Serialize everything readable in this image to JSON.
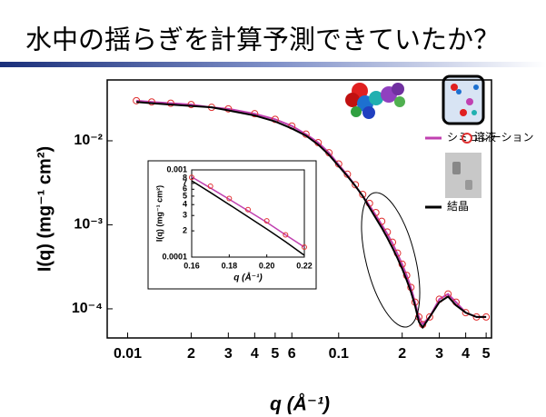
{
  "slide_title": "水中の揺らぎを計算予測できていたか？",
  "chart_data": [
    {
      "type": "line",
      "xscale": "log",
      "yscale": "log",
      "xlabel": "q (Å⁻¹)",
      "ylabel": "I(q) (mg⁻¹ cm²)",
      "xlim": [
        0.008,
        0.53
      ],
      "ylim": [
        4.5e-05,
        0.053
      ],
      "xticks": [
        0.01,
        {
          "value": 0.02,
          "label": "2"
        },
        {
          "value": 0.03,
          "label": "3"
        },
        {
          "value": 0.04,
          "label": "4"
        },
        {
          "value": 0.05,
          "label": "5"
        },
        {
          "value": 0.06,
          "label": "6"
        },
        0.1,
        {
          "value": 0.2,
          "label": "2"
        },
        {
          "value": 0.3,
          "label": "3"
        },
        {
          "value": 0.4,
          "label": "4"
        },
        {
          "value": 0.5,
          "label": "5"
        }
      ],
      "yticks": [
        {
          "value": 0.01,
          "label": "10⁻²"
        },
        {
          "value": 0.001,
          "label": "10⁻³"
        },
        {
          "value": 0.0001,
          "label": "10⁻⁴"
        }
      ],
      "x": [
        0.011,
        0.013,
        0.016,
        0.02,
        0.025,
        0.03,
        0.04,
        0.05,
        0.06,
        0.07,
        0.08,
        0.09,
        0.1,
        0.11,
        0.12,
        0.13,
        0.14,
        0.15,
        0.16,
        0.17,
        0.18,
        0.19,
        0.2,
        0.21,
        0.22,
        0.23,
        0.24,
        0.25,
        0.27,
        0.3,
        0.33,
        0.36,
        0.4,
        0.45,
        0.5
      ],
      "series": [
        {
          "name": "シミュレーション",
          "color": "#c040b0",
          "marker": "line",
          "values": [
            0.03,
            0.029,
            0.028,
            0.027,
            0.025,
            0.024,
            0.021,
            0.018,
            0.015,
            0.012,
            0.0095,
            0.0072,
            0.0052,
            0.0039,
            0.0029,
            0.0022,
            0.0017,
            0.0013,
            0.001,
            0.00078,
            0.0006,
            0.00045,
            0.00034,
            0.00025,
            0.00018,
            0.00012,
            8e-05,
            6.6e-05,
            8e-05,
            0.00013,
            0.00015,
            0.00012,
            9e-05,
            8e-05,
            8e-05
          ]
        },
        {
          "name": "溶液",
          "color": "#e03030",
          "marker": "circle",
          "values": [
            0.03,
            0.029,
            0.028,
            0.027,
            0.025,
            0.024,
            0.021,
            0.018,
            0.015,
            0.012,
            0.0095,
            0.0072,
            0.0053,
            0.004,
            0.003,
            0.0023,
            0.0018,
            0.0014,
            0.0011,
            0.00082,
            0.00062,
            0.00046,
            0.00034,
            0.00025,
            0.00018,
            0.00012,
            8e-05,
            6.5e-05,
            8e-05,
            0.00013,
            0.00015,
            0.00012,
            9e-05,
            8e-05,
            8e-05
          ]
        },
        {
          "name": "結晶",
          "color": "#000000",
          "marker": "line",
          "values": [
            0.029,
            0.028,
            0.027,
            0.026,
            0.025,
            0.023,
            0.02,
            0.017,
            0.014,
            0.0115,
            0.009,
            0.0068,
            0.005,
            0.0038,
            0.0029,
            0.0022,
            0.0016,
            0.0012,
            0.00092,
            0.0007,
            0.00053,
            0.0004,
            0.0003,
            0.00022,
            0.00016,
            0.00011,
            7e-05,
            6e-05,
            8e-05,
            0.00012,
            0.00014,
            0.00011,
            9e-05,
            8e-05,
            8e-05
          ]
        }
      ]
    },
    {
      "type": "line",
      "xscale": "linear",
      "yscale": "log",
      "xlabel": "q (Å⁻¹)",
      "ylabel": "I(q) (mg⁻¹ cm²)",
      "xlim": [
        0.16,
        0.22
      ],
      "ylim": [
        0.0001,
        0.001
      ],
      "xticks": [
        0.16,
        0.18,
        {
          "value": 0.2,
          "label": "0.20"
        },
        0.22
      ],
      "yticks": [
        0.001,
        {
          "value": 0.0008,
          "label": "8"
        },
        {
          "value": 0.0007,
          "label": "7"
        },
        {
          "value": 0.0006,
          "label": "6"
        },
        {
          "value": 0.0005,
          "label": "5"
        },
        {
          "value": 0.0004,
          "label": "4"
        },
        {
          "value": 0.0003,
          "label": "3"
        },
        {
          "value": 0.0002,
          "label": "2"
        },
        0.0001
      ],
      "x": [
        0.16,
        0.17,
        0.18,
        0.19,
        0.2,
        0.21,
        0.22
      ],
      "series": [
        {
          "color": "#c040b0",
          "marker": "line",
          "values": [
            0.00083,
            0.00062,
            0.00046,
            0.00034,
            0.00025,
            0.00018,
            0.00013
          ]
        },
        {
          "color": "#e03030",
          "marker": "circle",
          "values": [
            0.00082,
            0.00065,
            0.00047,
            0.00035,
            0.00026,
            0.00018,
            0.00013
          ]
        },
        {
          "color": "#000000",
          "marker": "line",
          "values": [
            0.00075,
            0.00055,
            0.0004,
            0.00029,
            0.00021,
            0.00015,
            0.000105
          ]
        }
      ]
    }
  ]
}
